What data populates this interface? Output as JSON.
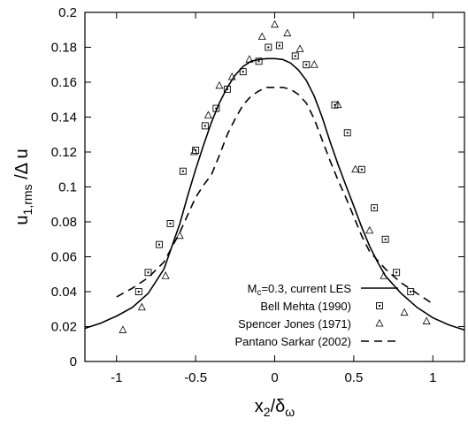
{
  "chart_data": {
    "type": "line",
    "xlabel": {
      "base": "x",
      "sub": "2",
      "sep": "/",
      "base2": "δ",
      "sub2": "ω"
    },
    "ylabel": {
      "base": "u",
      "sub": "1,rms",
      "rest": " /Δ u"
    },
    "xlim": [
      -1.2,
      1.2
    ],
    "ylim": [
      0,
      0.2
    ],
    "xticks": [
      -1,
      -0.5,
      0,
      0.5,
      1
    ],
    "xtick_labels": [
      "-1",
      "-0.5",
      "0",
      "0.5",
      "1"
    ],
    "yticks": [
      0,
      0.02,
      0.04,
      0.06,
      0.08,
      0.1,
      0.12,
      0.14,
      0.16,
      0.18,
      0.2
    ],
    "ytick_labels": [
      "0",
      "0.02",
      "0.04",
      "0.06",
      "0.08",
      "0.1",
      "0.12",
      "0.14",
      "0.16",
      "0.18",
      "0.2"
    ],
    "grid": false,
    "legend_position": "bottom-right",
    "series": [
      {
        "name": "M",
        "name_sub": "c",
        "name_rest": "=0.3, current LES",
        "style": "solid",
        "marker": "none",
        "x": [
          -1.2,
          -1.1,
          -1.0,
          -0.9,
          -0.8,
          -0.7,
          -0.6,
          -0.55,
          -0.5,
          -0.45,
          -0.4,
          -0.35,
          -0.3,
          -0.25,
          -0.2,
          -0.15,
          -0.1,
          -0.05,
          0,
          0.05,
          0.1,
          0.15,
          0.2,
          0.25,
          0.3,
          0.35,
          0.4,
          0.45,
          0.5,
          0.55,
          0.6,
          0.65,
          0.7,
          0.8,
          0.9,
          1.0,
          1.1,
          1.2
        ],
        "y": [
          0.019,
          0.022,
          0.026,
          0.031,
          0.039,
          0.053,
          0.079,
          0.095,
          0.11,
          0.124,
          0.137,
          0.148,
          0.157,
          0.164,
          0.169,
          0.172,
          0.173,
          0.1735,
          0.1735,
          0.173,
          0.171,
          0.167,
          0.161,
          0.152,
          0.14,
          0.126,
          0.113,
          0.101,
          0.089,
          0.077,
          0.066,
          0.057,
          0.049,
          0.039,
          0.031,
          0.025,
          0.021,
          0.018
        ]
      },
      {
        "name": "Bell  Mehta (1990)",
        "style": "none",
        "marker": "square",
        "x": [
          -0.86,
          -0.8,
          -0.73,
          -0.66,
          -0.58,
          -0.5,
          -0.44,
          -0.37,
          -0.3,
          -0.2,
          -0.1,
          -0.04,
          0.03,
          0.13,
          0.2,
          0.38,
          0.46,
          0.55,
          0.63,
          0.7,
          0.77,
          0.86
        ],
        "y": [
          0.04,
          0.051,
          0.067,
          0.079,
          0.109,
          0.121,
          0.135,
          0.145,
          0.156,
          0.166,
          0.172,
          0.18,
          0.181,
          0.175,
          0.17,
          0.147,
          0.131,
          0.11,
          0.088,
          0.07,
          0.051,
          0.04
        ]
      },
      {
        "name": "Spencer  Jones (1971)",
        "style": "none",
        "marker": "triangle",
        "x": [
          -0.96,
          -0.84,
          -0.69,
          -0.6,
          -0.51,
          -0.42,
          -0.35,
          -0.27,
          -0.16,
          -0.08,
          0.0,
          0.08,
          0.16,
          0.25,
          0.4,
          0.51,
          0.6,
          0.69,
          0.82,
          0.96
        ],
        "y": [
          0.018,
          0.031,
          0.049,
          0.072,
          0.12,
          0.141,
          0.158,
          0.163,
          0.173,
          0.186,
          0.193,
          0.188,
          0.179,
          0.17,
          0.147,
          0.11,
          0.075,
          0.049,
          0.028,
          0.023
        ]
      },
      {
        "name": "Pantano  Sarkar (2002)",
        "style": "dashed",
        "marker": "none",
        "x": [
          -1.0,
          -0.9,
          -0.8,
          -0.7,
          -0.6,
          -0.5,
          -0.45,
          -0.4,
          -0.35,
          -0.3,
          -0.25,
          -0.2,
          -0.15,
          -0.1,
          -0.05,
          0,
          0.05,
          0.1,
          0.15,
          0.2,
          0.25,
          0.3,
          0.35,
          0.4,
          0.45,
          0.5,
          0.55,
          0.6,
          0.7,
          0.8,
          0.9,
          1.0
        ],
        "y": [
          0.037,
          0.042,
          0.048,
          0.057,
          0.074,
          0.094,
          0.101,
          0.107,
          0.118,
          0.13,
          0.139,
          0.147,
          0.152,
          0.155,
          0.157,
          0.157,
          0.157,
          0.156,
          0.153,
          0.148,
          0.139,
          0.127,
          0.115,
          0.104,
          0.094,
          0.083,
          0.072,
          0.063,
          0.053,
          0.045,
          0.039,
          0.033
        ]
      }
    ]
  }
}
